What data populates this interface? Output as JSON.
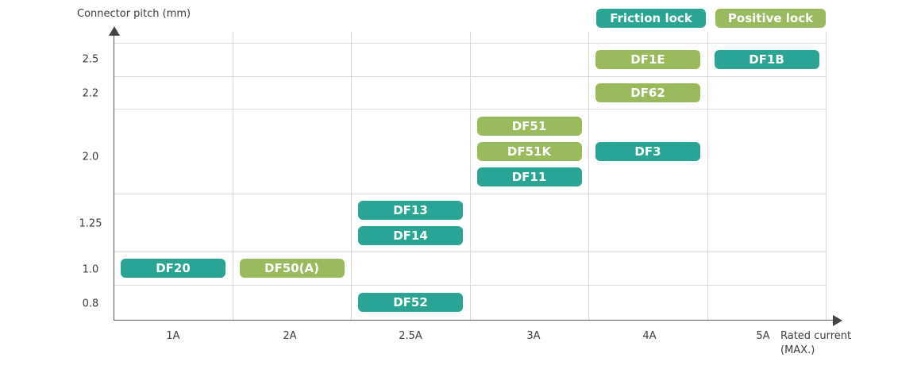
{
  "colors": {
    "friction": "#2aa595",
    "positive": "#9aba5e",
    "grid": "#d9d9d9",
    "axis": "#444444"
  },
  "legend": {
    "friction_label": "Friction lock",
    "positive_label": "Positive lock"
  },
  "axes": {
    "y_title": "Connector pitch (mm)",
    "x_title_line1": "Rated current",
    "x_title_line2": "(MAX.)"
  },
  "chart_data": {
    "type": "table",
    "y_categories": [
      "2.5",
      "2.2",
      "2.0",
      "1.25",
      "1.0",
      "0.8"
    ],
    "x_categories": [
      "1A",
      "2A",
      "2.5A",
      "3A",
      "4A",
      "5A"
    ],
    "connectors": [
      {
        "name": "DF1E",
        "current": "4A",
        "pitch": "2.5",
        "lock": "Positive lock"
      },
      {
        "name": "DF1B",
        "current": "5A",
        "pitch": "2.5",
        "lock": "Friction lock"
      },
      {
        "name": "DF62",
        "current": "4A",
        "pitch": "2.2",
        "lock": "Positive lock"
      },
      {
        "name": "DF51",
        "current": "3A",
        "pitch": "2.0",
        "lock": "Positive lock"
      },
      {
        "name": "DF51K",
        "current": "3A",
        "pitch": "2.0",
        "lock": "Positive lock"
      },
      {
        "name": "DF11",
        "current": "3A",
        "pitch": "2.0",
        "lock": "Friction lock"
      },
      {
        "name": "DF3",
        "current": "4A",
        "pitch": "2.0",
        "lock": "Friction lock"
      },
      {
        "name": "DF13",
        "current": "2.5A",
        "pitch": "1.25",
        "lock": "Friction lock"
      },
      {
        "name": "DF14",
        "current": "2.5A",
        "pitch": "1.25",
        "lock": "Friction lock"
      },
      {
        "name": "DF20",
        "current": "1A",
        "pitch": "1.0",
        "lock": "Friction lock"
      },
      {
        "name": "DF50(A)",
        "current": "2A",
        "pitch": "1.0",
        "lock": "Positive lock"
      },
      {
        "name": "DF52",
        "current": "2.5A",
        "pitch": "0.8",
        "lock": "Friction lock"
      }
    ]
  }
}
